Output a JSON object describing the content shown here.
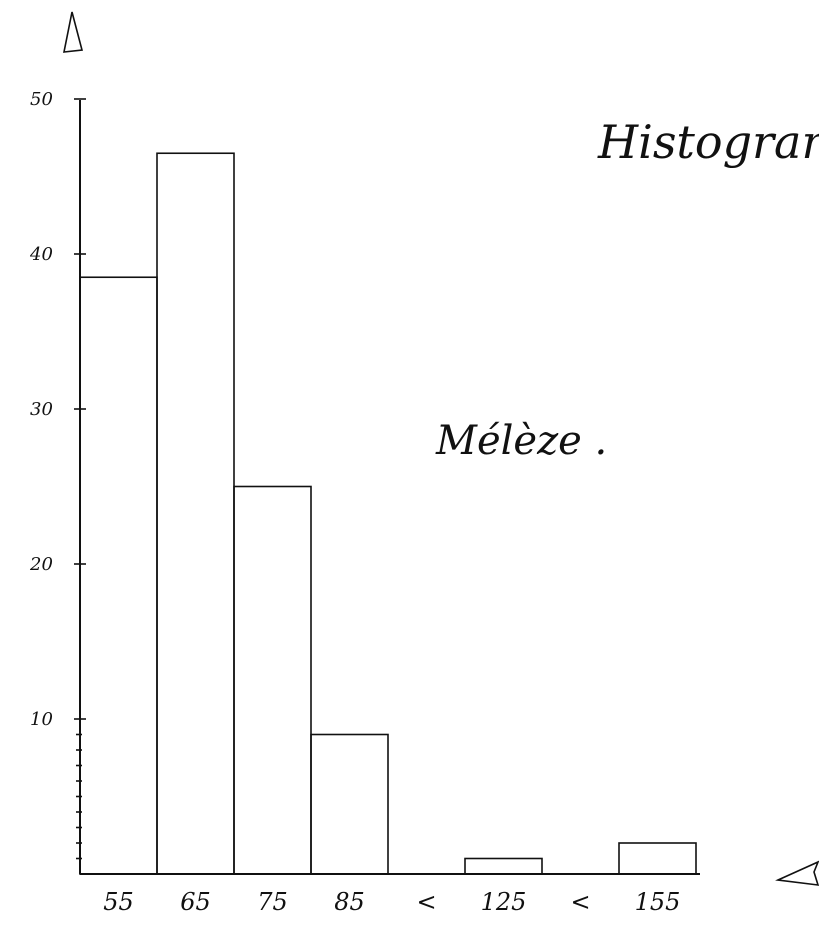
{
  "chart_data": {
    "type": "bar",
    "title": "Histogramm",
    "annotation": "Mélèze .",
    "categories": [
      "55",
      "65",
      "75",
      "85",
      "<",
      "125",
      "<",
      "155"
    ],
    "values": [
      38.5,
      46.5,
      25,
      9,
      0,
      1,
      0,
      2
    ],
    "ylim": [
      0,
      50
    ],
    "y_ticks": [
      "10",
      "20",
      "30",
      "40",
      "50"
    ],
    "xlabel": "",
    "ylabel": "",
    "grid": false,
    "minor_ticks": true
  }
}
